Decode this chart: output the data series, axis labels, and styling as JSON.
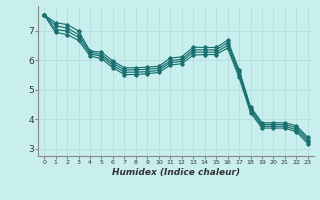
{
  "xlabel": "Humidex (Indice chaleur)",
  "ylabel": "",
  "bg_color": "#c8eeee",
  "grid_color": "#b8e0e0",
  "line_color": "#1a7070",
  "xlim": [
    -0.5,
    23.5
  ],
  "ylim": [
    2.75,
    7.85
  ],
  "xticks": [
    0,
    1,
    2,
    3,
    4,
    5,
    6,
    7,
    8,
    9,
    10,
    11,
    12,
    13,
    14,
    15,
    16,
    17,
    18,
    19,
    20,
    21,
    22,
    23
  ],
  "yticks": [
    3,
    4,
    5,
    6,
    7
  ],
  "series": [
    [
      7.55,
      7.28,
      7.22,
      7.0,
      6.32,
      6.28,
      5.98,
      5.75,
      5.75,
      5.77,
      5.8,
      6.08,
      6.12,
      6.45,
      6.44,
      6.44,
      6.68,
      5.68,
      4.42,
      3.88,
      3.88,
      3.88,
      3.78,
      3.38
    ],
    [
      7.55,
      7.18,
      7.1,
      6.88,
      6.28,
      6.2,
      5.9,
      5.68,
      5.68,
      5.7,
      5.73,
      5.99,
      6.04,
      6.36,
      6.36,
      6.36,
      6.6,
      5.6,
      4.36,
      3.82,
      3.82,
      3.82,
      3.71,
      3.31
    ],
    [
      7.55,
      7.05,
      7.0,
      6.78,
      6.22,
      6.14,
      5.83,
      5.6,
      5.6,
      5.62,
      5.66,
      5.92,
      5.97,
      6.28,
      6.28,
      6.28,
      6.51,
      5.51,
      4.3,
      3.76,
      3.76,
      3.76,
      3.64,
      3.24
    ],
    [
      7.55,
      6.95,
      6.88,
      6.68,
      6.15,
      6.06,
      5.75,
      5.52,
      5.52,
      5.55,
      5.59,
      5.84,
      5.89,
      6.18,
      6.2,
      6.2,
      6.42,
      5.42,
      4.22,
      3.7,
      3.7,
      3.7,
      3.57,
      3.17
    ]
  ]
}
